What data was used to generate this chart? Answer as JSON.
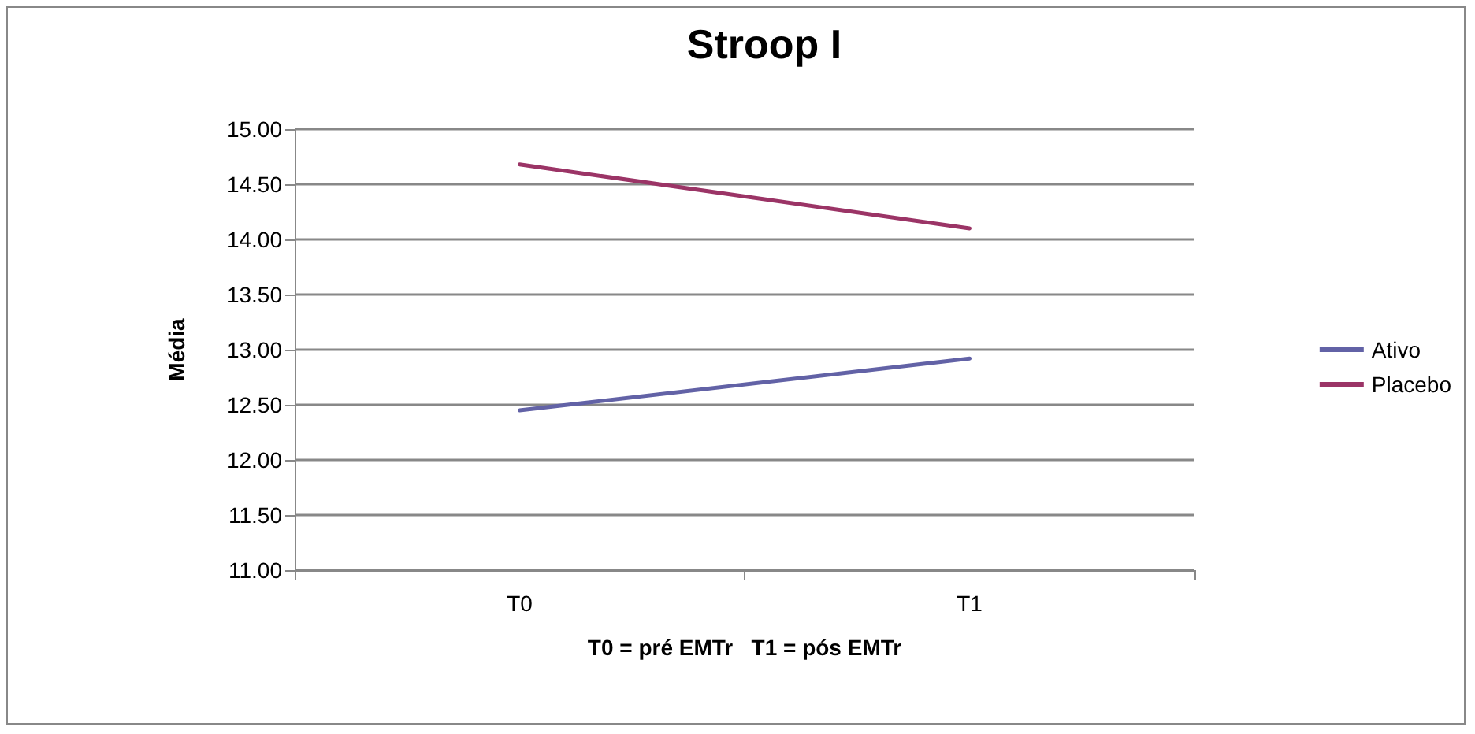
{
  "chart_data": {
    "type": "line",
    "title": "Stroop I",
    "xlabel": "T0 = pré EMTr   T1 = pós EMTr",
    "ylabel": "Média",
    "categories": [
      "T0",
      "T1"
    ],
    "series": [
      {
        "name": "Ativo",
        "color": "#6262a6",
        "values": [
          12.45,
          12.92
        ]
      },
      {
        "name": "Placebo",
        "color": "#9b3466",
        "values": [
          14.68,
          14.1
        ]
      }
    ],
    "ylim": [
      11,
      15
    ],
    "yticks": [
      {
        "value": 11,
        "label": "11.00"
      },
      {
        "value": 11.5,
        "label": "11.50"
      },
      {
        "value": 12,
        "label": "12.00"
      },
      {
        "value": 12.5,
        "label": "12.50"
      },
      {
        "value": 13,
        "label": "13.00"
      },
      {
        "value": 13.5,
        "label": "13.50"
      },
      {
        "value": 14,
        "label": "14.00"
      },
      {
        "value": 14.5,
        "label": "14.50"
      },
      {
        "value": 15,
        "label": "15.00"
      }
    ],
    "grid": "y",
    "legend": "right",
    "marker": "none",
    "line_style": "solid"
  }
}
